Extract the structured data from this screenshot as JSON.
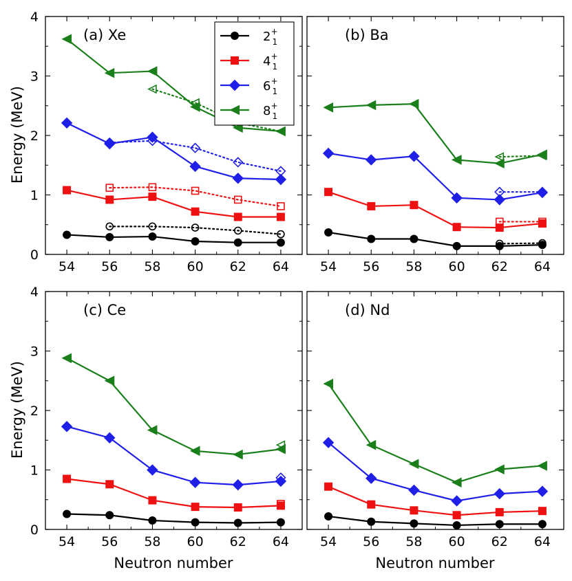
{
  "chart_data": {
    "type": "line",
    "x_ticks": [
      54,
      56,
      58,
      60,
      62,
      64
    ],
    "y_ticks": [
      "0",
      "1",
      "2",
      "3",
      "4"
    ],
    "xlim": [
      53,
      65
    ],
    "ylim": [
      0,
      4
    ],
    "xlabel": "Neutron number",
    "ylabel": "Energy (MeV)",
    "colors": {
      "2": "#000000",
      "4": "#ee1111",
      "6": "#1f1fe8",
      "8": "#1a7f1a"
    },
    "legend": [
      {
        "key": "2",
        "base": "2",
        "sup": "+",
        "sub": "1"
      },
      {
        "key": "4",
        "base": "4",
        "sup": "+",
        "sub": "1"
      },
      {
        "key": "6",
        "base": "6",
        "sup": "+",
        "sub": "1"
      },
      {
        "key": "8",
        "base": "8",
        "sup": "+",
        "sub": "1"
      }
    ],
    "panels": [
      {
        "label": "(a) Xe",
        "series": [
          {
            "key": "2",
            "marker": "circle",
            "x": [
              54,
              56,
              58,
              60,
              62,
              64
            ],
            "values": [
              0.33,
              0.29,
              0.3,
              0.22,
              0.2,
              0.2
            ]
          },
          {
            "key": "4",
            "marker": "square",
            "x": [
              54,
              56,
              58,
              60,
              62,
              64
            ],
            "values": [
              1.08,
              0.92,
              0.97,
              0.72,
              0.63,
              0.63
            ]
          },
          {
            "key": "6",
            "marker": "diamond",
            "x": [
              54,
              56,
              58,
              60,
              62,
              64
            ],
            "values": [
              2.21,
              1.86,
              1.97,
              1.48,
              1.28,
              1.26
            ]
          },
          {
            "key": "8",
            "marker": "triangle",
            "x": [
              54,
              56,
              58,
              60,
              62,
              64
            ],
            "values": [
              3.62,
              3.05,
              3.08,
              2.48,
              2.13,
              2.07
            ]
          }
        ],
        "experiment": [
          {
            "key": "2",
            "marker": "circle",
            "x": [
              56,
              58,
              60,
              62,
              64
            ],
            "values": [
              0.47,
              0.47,
              0.45,
              0.4,
              0.34
            ]
          },
          {
            "key": "4",
            "marker": "square",
            "x": [
              56,
              58,
              60,
              62,
              64
            ],
            "values": [
              1.12,
              1.13,
              1.07,
              0.92,
              0.81
            ]
          },
          {
            "key": "6",
            "marker": "diamond",
            "x": [
              56,
              58,
              60,
              62,
              64
            ],
            "values": [
              1.88,
              1.91,
              1.79,
              1.55,
              1.4
            ]
          },
          {
            "key": "8",
            "marker": "triangle",
            "x": [
              58,
              60,
              62,
              64
            ],
            "values": [
              2.78,
              2.55,
              2.21,
              2.07
            ]
          }
        ]
      },
      {
        "label": "(b) Ba",
        "series": [
          {
            "key": "2",
            "marker": "circle",
            "x": [
              54,
              56,
              58,
              60,
              62,
              64
            ],
            "values": [
              0.37,
              0.26,
              0.26,
              0.14,
              0.14,
              0.16
            ]
          },
          {
            "key": "4",
            "marker": "square",
            "x": [
              54,
              56,
              58,
              60,
              62,
              64
            ],
            "values": [
              1.05,
              0.81,
              0.83,
              0.46,
              0.45,
              0.52
            ]
          },
          {
            "key": "6",
            "marker": "diamond",
            "x": [
              54,
              56,
              58,
              60,
              62,
              64
            ],
            "values": [
              1.7,
              1.59,
              1.65,
              0.95,
              0.92,
              1.04
            ]
          },
          {
            "key": "8",
            "marker": "triangle",
            "x": [
              54,
              56,
              58,
              60,
              62,
              64
            ],
            "values": [
              2.47,
              2.51,
              2.53,
              1.59,
              1.53,
              1.68
            ]
          }
        ],
        "experiment": [
          {
            "key": "2",
            "marker": "circle",
            "x": [
              62,
              64
            ],
            "values": [
              0.18,
              0.19
            ]
          },
          {
            "key": "4",
            "marker": "square",
            "x": [
              62,
              64
            ],
            "values": [
              0.55,
              0.55
            ]
          },
          {
            "key": "6",
            "marker": "diamond",
            "x": [
              62,
              64
            ],
            "values": [
              1.05,
              1.05
            ]
          },
          {
            "key": "8",
            "marker": "triangle",
            "x": [
              62,
              64
            ],
            "values": [
              1.64,
              1.66
            ]
          }
        ]
      },
      {
        "label": "(c) Ce",
        "series": [
          {
            "key": "2",
            "marker": "circle",
            "x": [
              54,
              56,
              58,
              60,
              62,
              64
            ],
            "values": [
              0.26,
              0.24,
              0.15,
              0.12,
              0.11,
              0.12
            ]
          },
          {
            "key": "4",
            "marker": "square",
            "x": [
              54,
              56,
              58,
              60,
              62,
              64
            ],
            "values": [
              0.85,
              0.76,
              0.49,
              0.38,
              0.37,
              0.4
            ]
          },
          {
            "key": "6",
            "marker": "diamond",
            "x": [
              54,
              56,
              58,
              60,
              62,
              64
            ],
            "values": [
              1.73,
              1.54,
              1.0,
              0.79,
              0.75,
              0.81
            ]
          },
          {
            "key": "8",
            "marker": "triangle",
            "x": [
              54,
              56,
              58,
              60,
              62,
              64
            ],
            "values": [
              2.88,
              2.5,
              1.67,
              1.32,
              1.26,
              1.35
            ]
          }
        ],
        "experiment": [
          {
            "key": "4",
            "marker": "square",
            "x": [
              64
            ],
            "values": [
              0.43
            ]
          },
          {
            "key": "6",
            "marker": "diamond",
            "x": [
              64
            ],
            "values": [
              0.87
            ]
          },
          {
            "key": "8",
            "marker": "triangle",
            "x": [
              64
            ],
            "values": [
              1.42
            ]
          }
        ]
      },
      {
        "label": "(d) Nd",
        "series": [
          {
            "key": "2",
            "marker": "circle",
            "x": [
              54,
              56,
              58,
              60,
              62,
              64
            ],
            "values": [
              0.22,
              0.13,
              0.1,
              0.07,
              0.09,
              0.09
            ]
          },
          {
            "key": "4",
            "marker": "square",
            "x": [
              54,
              56,
              58,
              60,
              62,
              64
            ],
            "values": [
              0.72,
              0.42,
              0.32,
              0.24,
              0.29,
              0.31
            ]
          },
          {
            "key": "6",
            "marker": "diamond",
            "x": [
              54,
              56,
              58,
              60,
              62,
              64
            ],
            "values": [
              1.46,
              0.86,
              0.66,
              0.48,
              0.6,
              0.64
            ]
          },
          {
            "key": "8",
            "marker": "triangle",
            "x": [
              54,
              56,
              58,
              60,
              62,
              64
            ],
            "values": [
              2.45,
              1.42,
              1.1,
              0.79,
              1.01,
              1.07
            ]
          }
        ],
        "experiment": []
      }
    ]
  }
}
